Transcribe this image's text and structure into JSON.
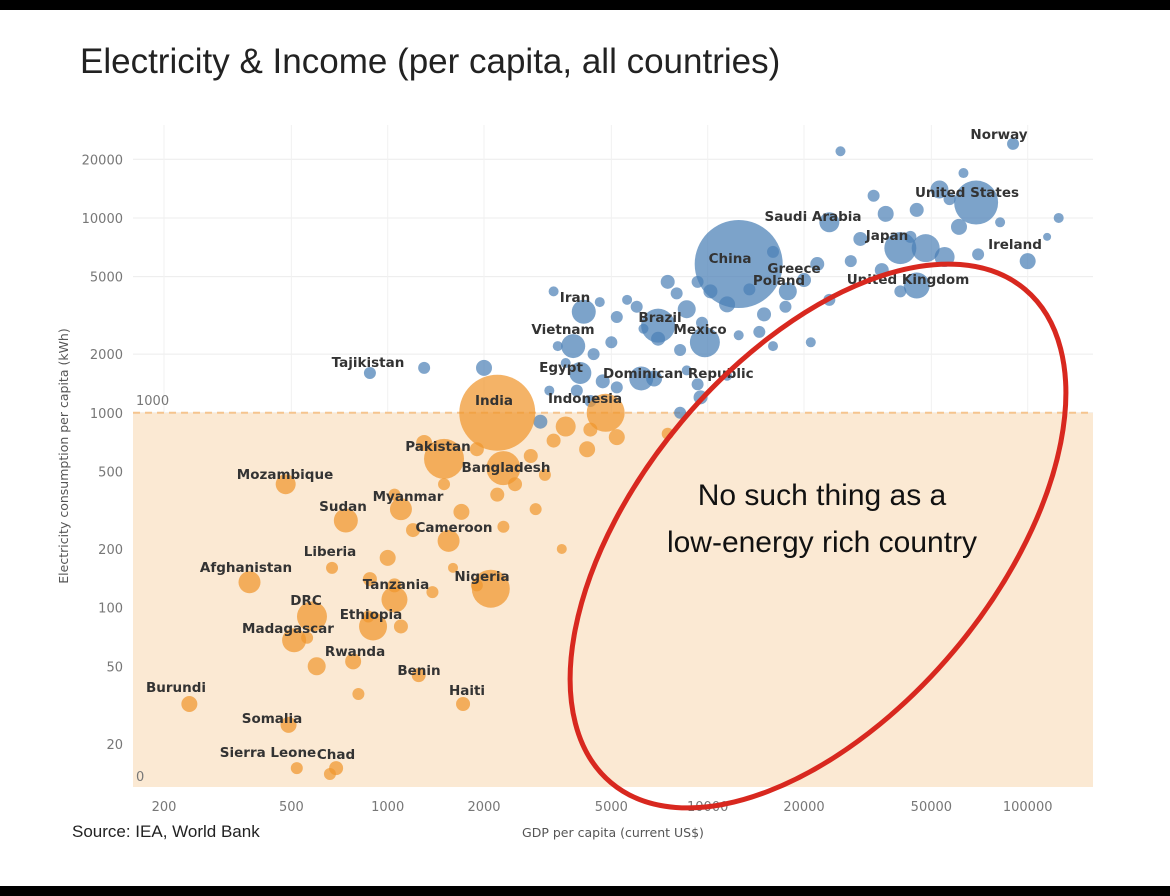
{
  "title": "Electricity & Income (per capita, all countries)",
  "source": "Source: IEA, World Bank",
  "colors": {
    "high": "#4a7fb5",
    "low": "#f0962c",
    "shade": "#fbe9d3",
    "threshold_line": "#f5c48e",
    "ellipse": "#d8281f"
  },
  "chart_data": {
    "type": "scatter",
    "xlabel": "GDP per capita (current US$)",
    "ylabel": "Electricity consumption per capita (kWh)",
    "x_scale": "log",
    "y_scale": "log",
    "xlim": [
      160,
      160000
    ],
    "ylim": [
      12,
      30000
    ],
    "x_ticks": [
      200,
      500,
      1000,
      2000,
      5000,
      10000,
      20000,
      50000,
      100000
    ],
    "y_ticks": [
      20,
      50,
      100,
      200,
      500,
      1000,
      2000,
      5000,
      10000,
      20000
    ],
    "y_zero_label": "0",
    "threshold": {
      "value": 1000,
      "label": "1000"
    },
    "annotation": {
      "line1": "No such thing as a",
      "line2": "low-energy rich country"
    },
    "points": [
      {
        "country": "Norway",
        "gdp": 90000,
        "kwh": 24000,
        "size": 6
      },
      {
        "country": "United States",
        "gdp": 69000,
        "kwh": 12000,
        "size": 22
      },
      {
        "country": "Saudi Arabia",
        "gdp": 24000,
        "kwh": 9500,
        "size": 10
      },
      {
        "country": "Japan",
        "gdp": 40000,
        "kwh": 7000,
        "size": 16
      },
      {
        "country": "Ireland",
        "gdp": 100000,
        "kwh": 6000,
        "size": 8
      },
      {
        "country": "China",
        "gdp": 12500,
        "kwh": 5800,
        "size": 44
      },
      {
        "country": "Greece",
        "gdp": 20000,
        "kwh": 4800,
        "size": 7
      },
      {
        "country": "Poland",
        "gdp": 17800,
        "kwh": 4200,
        "size": 9
      },
      {
        "country": "United Kingdom",
        "gdp": 45000,
        "kwh": 4500,
        "size": 13
      },
      {
        "country": "Iran",
        "gdp": 4100,
        "kwh": 3300,
        "size": 12
      },
      {
        "country": "Brazil",
        "gdp": 7000,
        "kwh": 2800,
        "size": 17
      },
      {
        "country": "Mexico",
        "gdp": 9800,
        "kwh": 2300,
        "size": 15
      },
      {
        "country": "Vietnam",
        "gdp": 3800,
        "kwh": 2200,
        "size": 12
      },
      {
        "country": "Egypt",
        "gdp": 4000,
        "kwh": 1600,
        "size": 11
      },
      {
        "country": "Dominican Republic",
        "gdp": 6800,
        "kwh": 1500,
        "size": 8
      },
      {
        "country": "Tajikistan",
        "gdp": 880,
        "kwh": 1600,
        "size": 6
      },
      {
        "country": "India",
        "gdp": 2200,
        "kwh": 1000,
        "size": 38
      },
      {
        "country": "Indonesia",
        "gdp": 4800,
        "kwh": 1000,
        "size": 19
      },
      {
        "country": "Pakistan",
        "gdp": 1500,
        "kwh": 580,
        "size": 20
      },
      {
        "country": "Bangladesh",
        "gdp": 2300,
        "kwh": 520,
        "size": 17
      },
      {
        "country": "Mozambique",
        "gdp": 480,
        "kwh": 430,
        "size": 10
      },
      {
        "country": "Myanmar",
        "gdp": 1100,
        "kwh": 320,
        "size": 11
      },
      {
        "country": "Sudan",
        "gdp": 740,
        "kwh": 280,
        "size": 12
      },
      {
        "country": "Cameroon",
        "gdp": 1550,
        "kwh": 220,
        "size": 11
      },
      {
        "country": "Liberia",
        "gdp": 670,
        "kwh": 160,
        "size": 6
      },
      {
        "country": "Afghanistan",
        "gdp": 370,
        "kwh": 135,
        "size": 11
      },
      {
        "country": "Nigeria",
        "gdp": 2100,
        "kwh": 125,
        "size": 19
      },
      {
        "country": "Tanzania",
        "gdp": 1050,
        "kwh": 110,
        "size": 13
      },
      {
        "country": "DRC",
        "gdp": 580,
        "kwh": 90,
        "size": 15
      },
      {
        "country": "Ethiopia",
        "gdp": 900,
        "kwh": 80,
        "size": 14
      },
      {
        "country": "Madagascar",
        "gdp": 510,
        "kwh": 68,
        "size": 12
      },
      {
        "country": "Rwanda",
        "gdp": 780,
        "kwh": 53,
        "size": 8
      },
      {
        "country": "Benin",
        "gdp": 1250,
        "kwh": 45,
        "size": 7
      },
      {
        "country": "Haiti",
        "gdp": 1720,
        "kwh": 32,
        "size": 7
      },
      {
        "country": "Burundi",
        "gdp": 240,
        "kwh": 32,
        "size": 8
      },
      {
        "country": "Somalia",
        "gdp": 490,
        "kwh": 25,
        "size": 8
      },
      {
        "country": "Sierra Leone",
        "gdp": 520,
        "kwh": 15,
        "size": 6
      },
      {
        "country": "Chad",
        "gdp": 690,
        "kwh": 15,
        "size": 7
      }
    ]
  }
}
